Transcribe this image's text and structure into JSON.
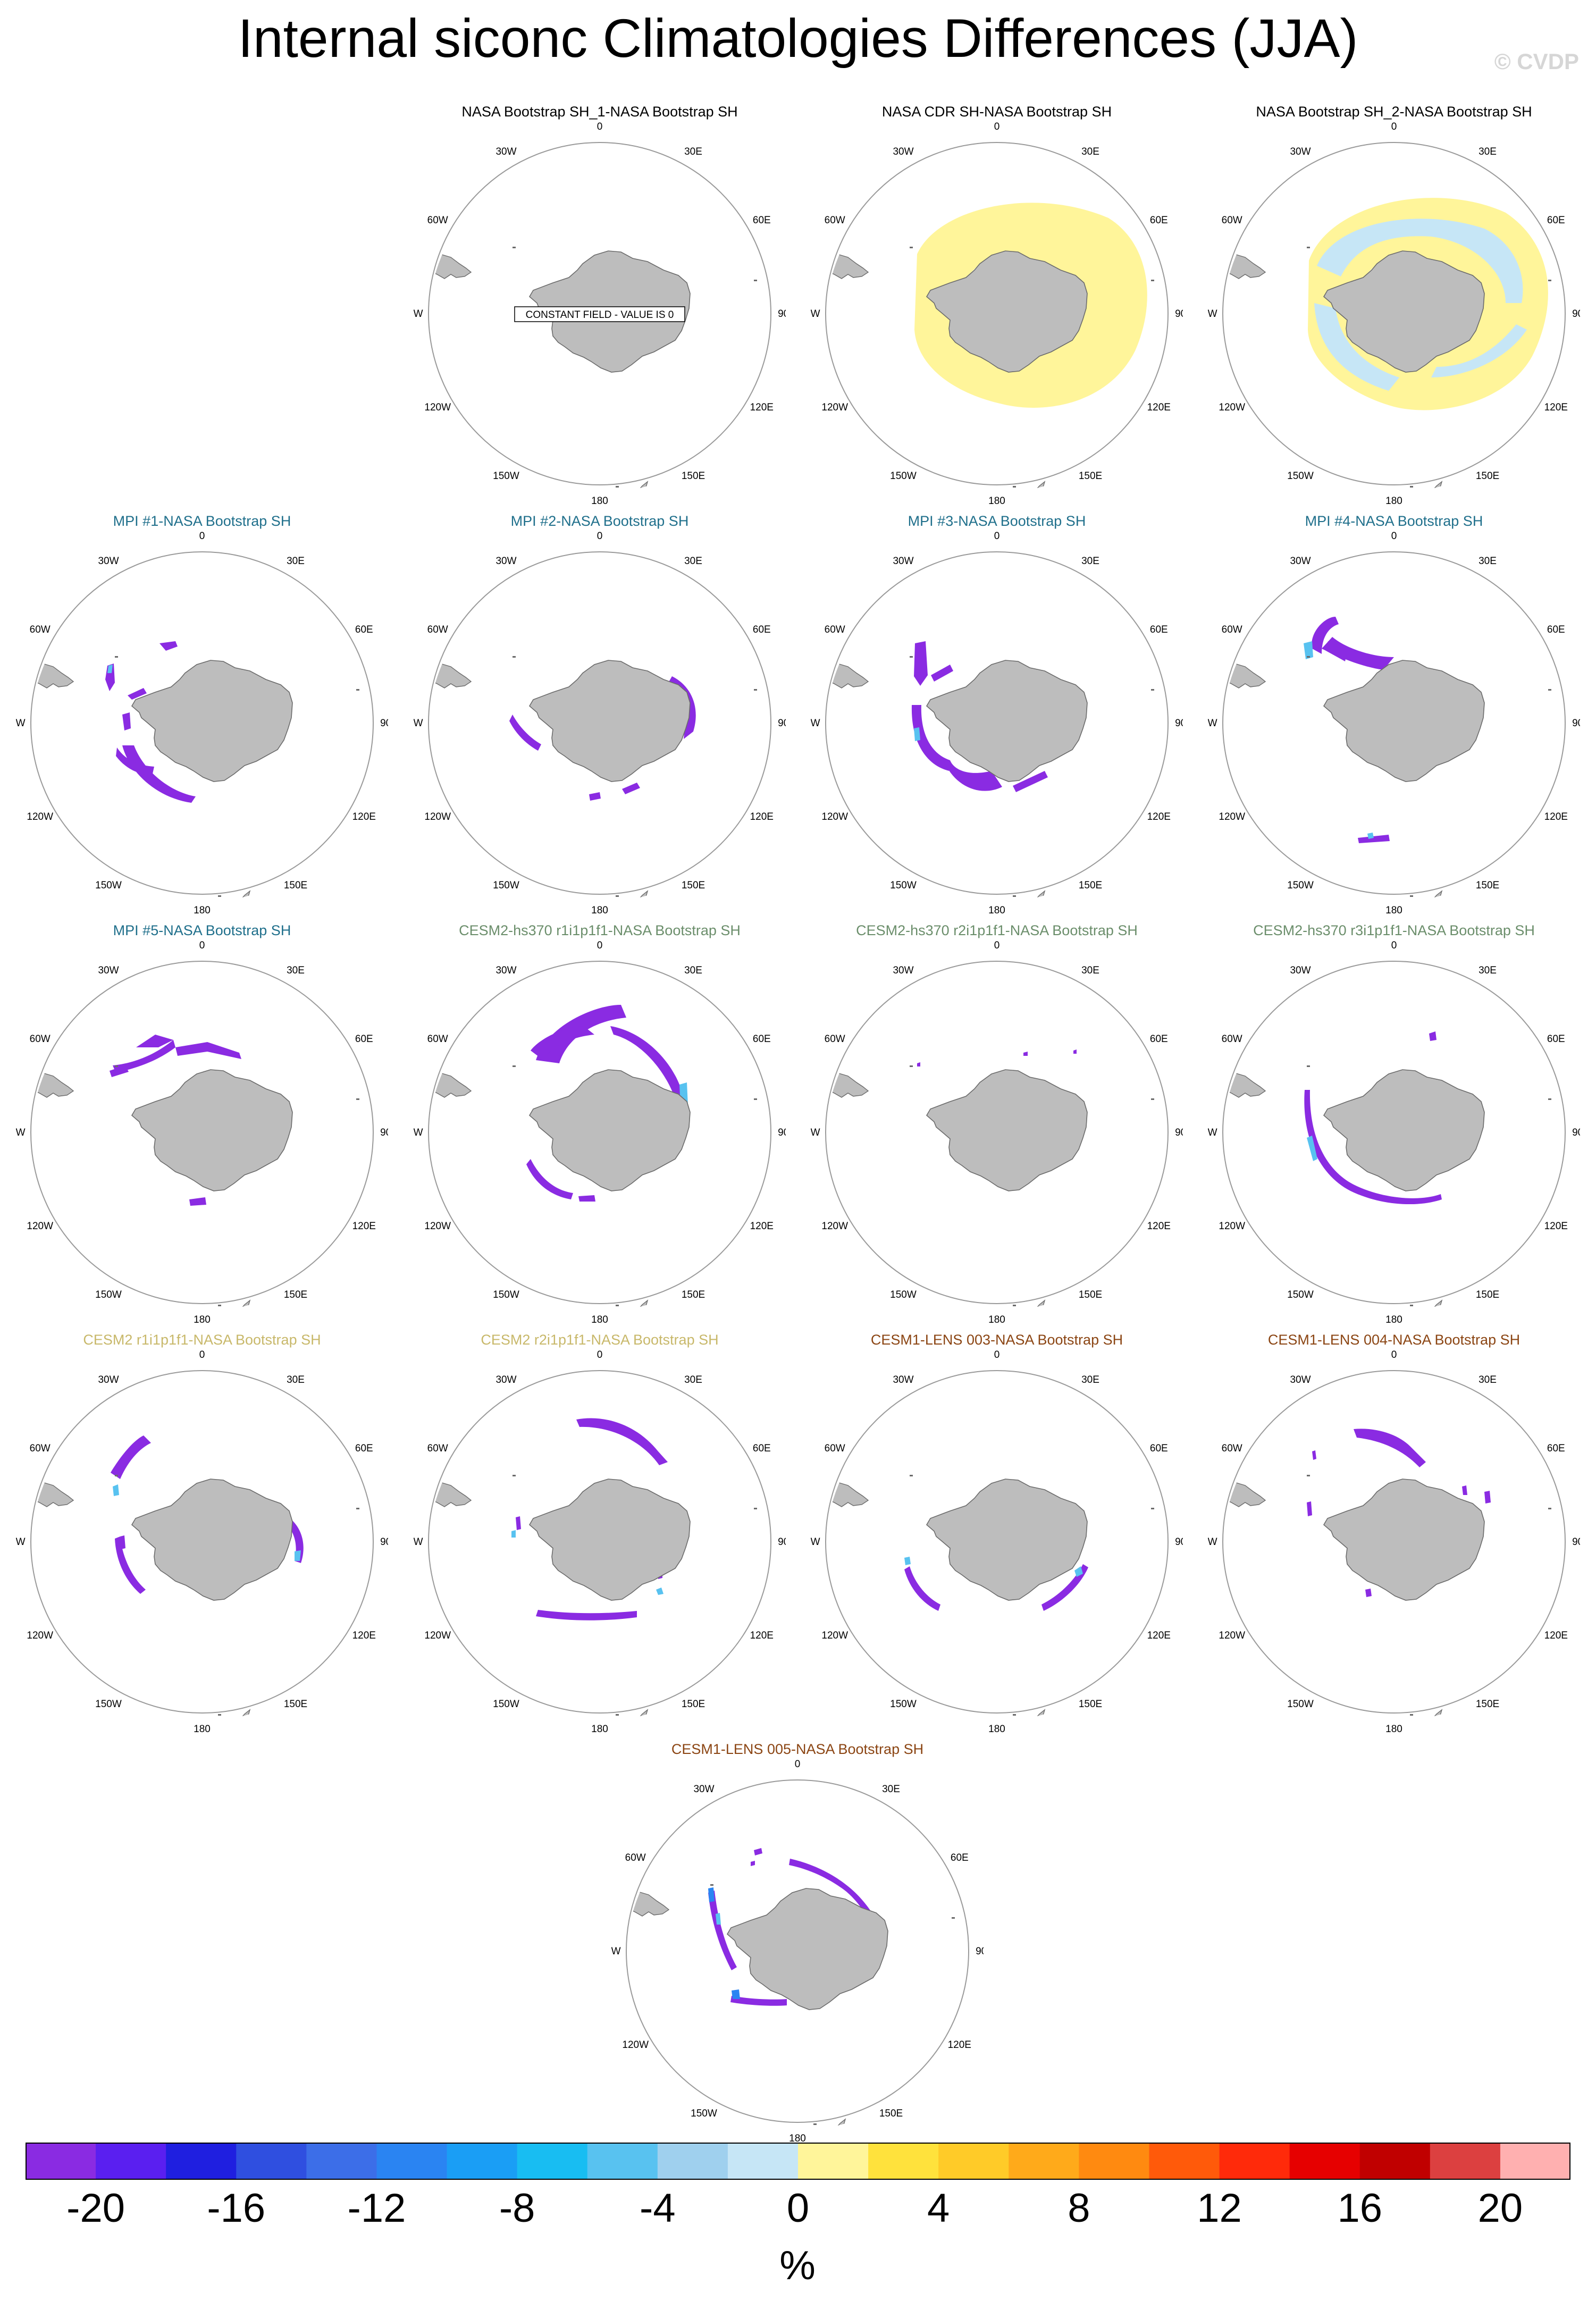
{
  "figure": {
    "title": "Internal siconc Climatologies Differences (JJA)",
    "watermark": "© CVDP"
  },
  "map_labels": [
    "0",
    "30E",
    "60E",
    "90E",
    "120E",
    "150E",
    "180",
    "150W",
    "120W",
    "90W",
    "60W",
    "30W"
  ],
  "panels": [
    {
      "title": "NASA Bootstrap SH_1-NASA Bootstrap SH",
      "title_color": "#000000",
      "note": "CONSTANT FIELD - VALUE IS 0",
      "pattern": "none"
    },
    {
      "title": "NASA CDR SH-NASA Bootstrap SH",
      "title_color": "#000000",
      "pattern": "cdr"
    },
    {
      "title": "NASA Bootstrap SH_2-NASA Bootstrap SH",
      "title_color": "#000000",
      "pattern": "boot2"
    },
    {
      "title": "MPI #1-NASA Bootstrap SH",
      "title_color": "#1f6f8b",
      "pattern": "mpi1"
    },
    {
      "title": "MPI #2-NASA Bootstrap SH",
      "title_color": "#1f6f8b",
      "pattern": "mpi2"
    },
    {
      "title": "MPI #3-NASA Bootstrap SH",
      "title_color": "#1f6f8b",
      "pattern": "mpi3"
    },
    {
      "title": "MPI #4-NASA Bootstrap SH",
      "title_color": "#1f6f8b",
      "pattern": "mpi4"
    },
    {
      "title": "MPI #5-NASA Bootstrap SH",
      "title_color": "#1f6f8b",
      "pattern": "mpi5"
    },
    {
      "title": "CESM2-hs370 r1i1p1f1-NASA Bootstrap SH",
      "title_color": "#6b8e6b",
      "pattern": "hs1"
    },
    {
      "title": "CESM2-hs370 r2i1p1f1-NASA Bootstrap SH",
      "title_color": "#6b8e6b",
      "pattern": "hs2"
    },
    {
      "title": "CESM2-hs370 r3i1p1f1-NASA Bootstrap SH",
      "title_color": "#6b8e6b",
      "pattern": "hs3"
    },
    {
      "title": "CESM2 r1i1p1f1-NASA Bootstrap SH",
      "title_color": "#c8b86a",
      "pattern": "c1"
    },
    {
      "title": "CESM2 r2i1p1f1-NASA Bootstrap SH",
      "title_color": "#c8b86a",
      "pattern": "c2"
    },
    {
      "title": "CESM1-LENS 003-NASA Bootstrap SH",
      "title_color": "#8b4513",
      "pattern": "l3"
    },
    {
      "title": "CESM1-LENS 004-NASA Bootstrap SH",
      "title_color": "#8b4513",
      "pattern": "l4"
    },
    {
      "title": "CESM1-LENS 005-NASA Bootstrap SH",
      "title_color": "#8b4513",
      "pattern": "l5"
    }
  ],
  "colorbar": {
    "unit": "%",
    "tick_labels": [
      "-20",
      "-16",
      "-12",
      "-8",
      "-4",
      "0",
      "4",
      "8",
      "12",
      "16",
      "20"
    ],
    "colors": [
      "#8a2be2",
      "#5a1ff0",
      "#1f1fe0",
      "#2f4fe0",
      "#3c6ee8",
      "#2a84f2",
      "#1a9ef5",
      "#18bdf2",
      "#58c2f0",
      "#9fd0ee",
      "#c6e6f6",
      "#fff59a",
      "#ffe23c",
      "#ffcb28",
      "#ffaa1a",
      "#ff8a10",
      "#ff5a0a",
      "#ff2a0a",
      "#e60000",
      "#c00000",
      "#dc4040",
      "#ffb0b0"
    ]
  }
}
